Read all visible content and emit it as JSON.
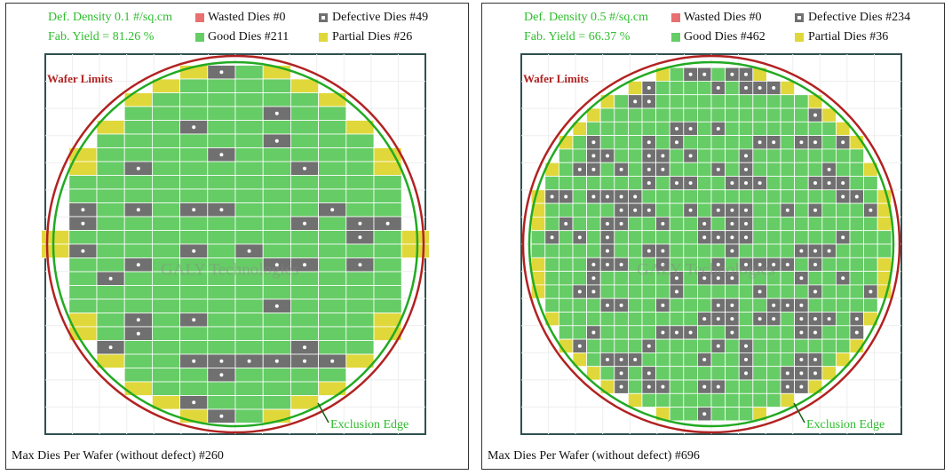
{
  "panels": [
    {
      "density": "Def. Density 0.1 #/sq.cm",
      "yield": "Fab. Yield = 81.26 %",
      "legend": {
        "wasted": "Wasted Dies  #0",
        "defective": "Defective Dies  #49",
        "good": "Good Dies #211",
        "partial": "Partial Dies #26"
      },
      "wafer_limits": "Wafer Limits",
      "exclusion_edge": "Exclusion Edge",
      "watermark": "GALY Technologies",
      "footer": "Max Dies Per Wafer (without defect) #260"
    },
    {
      "density": "Def. Density 0.5 #/sq.cm",
      "yield": "Fab. Yield = 66.37 %",
      "legend": {
        "wasted": "Wasted Dies  #0",
        "defective": "Defective Dies  #234",
        "good": "Good Dies #462",
        "partial": "Partial Dies #36"
      },
      "wafer_limits": "Wafer Limits",
      "exclusion_edge": "Exclusion Edge",
      "watermark": "GALY Technologies",
      "footer": "Max Dies Per Wafer (without defect) #696"
    }
  ]
}
